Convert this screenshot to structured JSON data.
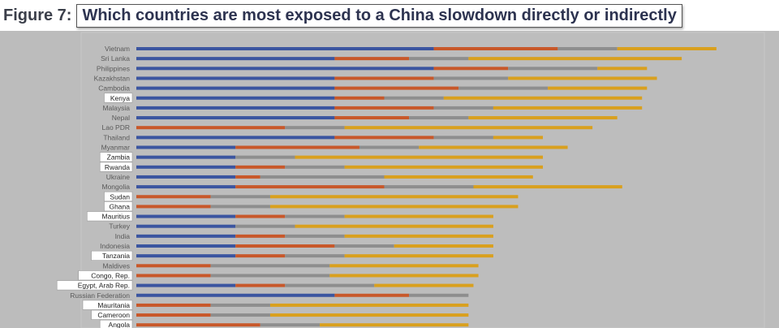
{
  "figure_label": "Figure 7:",
  "chart_data": {
    "type": "bar",
    "orientation": "horizontal",
    "stacked": true,
    "title": "Which countries are most exposed to a China slowdown directly or indirectly",
    "colors": [
      "#3b55a0",
      "#c8582a",
      "#8e8e8e",
      "#d9a01e"
    ],
    "highlighted_color": "#ffffff",
    "categories": [
      "Vietnam",
      "Sri Lanka",
      "Philippines",
      "Kazakhstan",
      "Cambodia",
      "Kenya",
      "Malaysia",
      "Nepal",
      "Lao PDR",
      "Thailand",
      "Myanmar",
      "Zambia",
      "Rwanda",
      "Ukraine",
      "Mongolia",
      "Sudan",
      "Ghana",
      "Mauritius",
      "Turkey",
      "India",
      "Indonesia",
      "Tanzania",
      "Maldives",
      "Congo, Rep.",
      "Egypt, Arab Rep.",
      "Russian Federation",
      "Mauritania",
      "Cameroon",
      "Angola"
    ],
    "highlighted": [
      "Kenya",
      "Zambia",
      "Rwanda",
      "Sudan",
      "Ghana",
      "Mauritius",
      "Tanzania",
      "Congo, Rep.",
      "Egypt, Arab Rep.",
      "Mauritania",
      "Cameroon",
      "Angola"
    ],
    "series": [
      {
        "values": [
          6,
          4,
          6,
          4,
          4,
          4,
          4,
          4,
          0,
          4,
          2,
          2,
          2,
          2,
          2,
          0,
          0,
          2,
          2,
          2,
          2,
          2,
          0,
          0,
          2,
          4,
          0,
          0,
          0
        ]
      },
      {
        "values": [
          2.5,
          1.5,
          1.5,
          2,
          2.5,
          1,
          2,
          1.5,
          3,
          2,
          2.5,
          0,
          1,
          0.5,
          3,
          1.5,
          1.5,
          1,
          0,
          1,
          2,
          1,
          1.5,
          1.5,
          1,
          1.5,
          1.5,
          1.5,
          2.5
        ]
      },
      {
        "values": [
          1.2,
          1.2,
          1.8,
          1.5,
          1.8,
          1.2,
          1.2,
          1.2,
          1.2,
          1.2,
          1.2,
          1.2,
          1.2,
          2.5,
          1.8,
          1.2,
          1.2,
          1.2,
          1.2,
          1.2,
          1.2,
          1.2,
          2.4,
          2.4,
          1.8,
          1.2,
          1.2,
          1.2,
          1.2
        ]
      },
      {
        "values": [
          2,
          4.3,
          1,
          3,
          2,
          4,
          3,
          3,
          5,
          1,
          3,
          5,
          4,
          3,
          3,
          5,
          5,
          3,
          4,
          3,
          2,
          3,
          3,
          3,
          2,
          0,
          4,
          4,
          3
        ]
      }
    ]
  }
}
